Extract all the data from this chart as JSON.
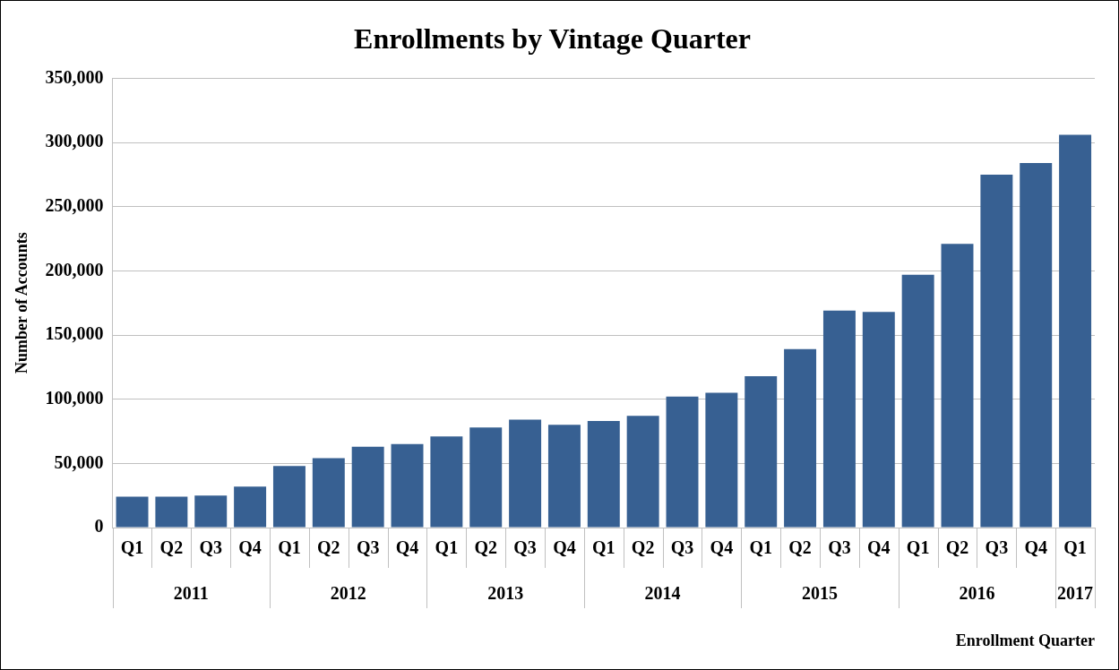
{
  "chart_data": {
    "type": "bar",
    "title": "Enrollments by Vintage Quarter",
    "xlabel": "Enrollment Quarter",
    "ylabel": "Number of Accounts",
    "categories": [
      "Q1",
      "Q2",
      "Q3",
      "Q4",
      "Q1",
      "Q2",
      "Q3",
      "Q4",
      "Q1",
      "Q2",
      "Q3",
      "Q4",
      "Q1",
      "Q2",
      "Q3",
      "Q4",
      "Q1",
      "Q2",
      "Q3",
      "Q4",
      "Q1",
      "Q2",
      "Q3",
      "Q4",
      "Q1"
    ],
    "values": [
      24000,
      24000,
      25000,
      32000,
      48000,
      54000,
      63000,
      65000,
      71000,
      78000,
      84000,
      80000,
      83000,
      87000,
      102000,
      105000,
      118000,
      139000,
      169000,
      168000,
      197000,
      221000,
      275000,
      284000,
      306000
    ],
    "color": "#376092",
    "ylim": [
      0,
      350000
    ],
    "yticks": [
      {
        "value": 0,
        "label": "0"
      },
      {
        "value": 50000,
        "label": "50,000"
      },
      {
        "value": 100000,
        "label": "100,000"
      },
      {
        "value": 150000,
        "label": "150,000"
      },
      {
        "value": 200000,
        "label": "200,000"
      },
      {
        "value": 250000,
        "label": "250,000"
      },
      {
        "value": 300000,
        "label": "300,000"
      },
      {
        "value": 350000,
        "label": "350,000"
      }
    ],
    "grid": "y",
    "annotations": [
      "2011",
      "2012",
      "2013",
      "2014",
      "2015",
      "2016",
      "2017"
    ]
  }
}
